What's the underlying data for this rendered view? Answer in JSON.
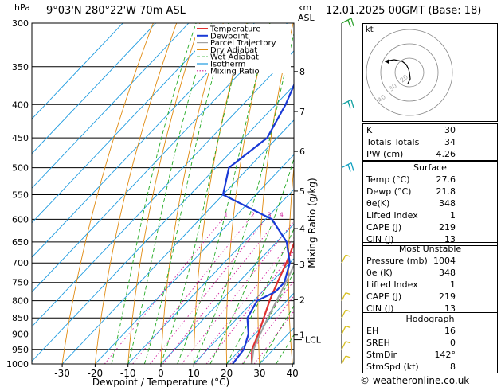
{
  "header": {
    "location": "9°03'N 280°22'W 70m ASL",
    "datetime": "12.01.2025 00GMT (Base: 18)",
    "hpa_label": "hPa",
    "km_label": "km",
    "asl_label": "ASL"
  },
  "footer": {
    "copyright": "© weatheronline.co.uk"
  },
  "chart_data": {
    "type": "line",
    "title": "9°03'N 280°22'W 70m ASL",
    "xlabel": "Dewpoint / Temperature (°C)",
    "ylabel": "Mixing Ratio (g/kg)",
    "x_ticks": [
      -30,
      -20,
      -10,
      0,
      10,
      20,
      30,
      40
    ],
    "pressure_levels": [
      300,
      350,
      400,
      450,
      500,
      550,
      600,
      650,
      700,
      750,
      800,
      850,
      900,
      950,
      1000
    ],
    "km_ticks": [
      {
        "label": "8",
        "p": 356
      },
      {
        "label": "7",
        "p": 410
      },
      {
        "label": "6",
        "p": 472
      },
      {
        "label": "5",
        "p": 543
      },
      {
        "label": "4",
        "p": 620
      },
      {
        "label": "3",
        "p": 704
      },
      {
        "label": "2",
        "p": 797
      },
      {
        "label": "1",
        "p": 903
      }
    ],
    "lcl_label": "LCL",
    "lcl_p": 918,
    "mixing_ratio_labels": [
      "1",
      "2",
      "3",
      "4",
      "6",
      "8",
      "10",
      "16",
      "20",
      "25"
    ],
    "mixing_ratio_values": [
      1,
      2,
      3,
      4,
      6,
      8,
      10,
      16,
      20,
      25
    ],
    "legend": [
      "Temperature",
      "Dewpoint",
      "Parcel Trajectory",
      "Dry Adiabat",
      "Wet Adiabat",
      "Isotherm",
      "Mixing Ratio"
    ],
    "legend_placement": "top-left",
    "grid": true,
    "series": [
      {
        "name": "Temperature",
        "color": "#e03030",
        "points": [
          [
            1000,
            27.6
          ],
          [
            950,
            23.5
          ],
          [
            900,
            21.0
          ],
          [
            850,
            18.0
          ],
          [
            800,
            14.8
          ],
          [
            750,
            11.9
          ],
          [
            700,
            9.0
          ],
          [
            650,
            5.4
          ],
          [
            600,
            1.8
          ],
          [
            550,
            -2.4
          ],
          [
            500,
            -6.6
          ],
          [
            450,
            -12.0
          ],
          [
            400,
            -18.5
          ],
          [
            375,
            -22.6
          ]
        ]
      },
      {
        "name": "Dewpoint",
        "color": "#1a3ad6",
        "points": [
          [
            1000,
            21.8
          ],
          [
            950,
            21.0
          ],
          [
            900,
            18.0
          ],
          [
            850,
            13.0
          ],
          [
            800,
            11.0
          ],
          [
            775,
            14.0
          ],
          [
            750,
            14.0
          ],
          [
            700,
            10.0
          ],
          [
            650,
            3.0
          ],
          [
            600,
            -8.0
          ],
          [
            550,
            -30.0
          ],
          [
            500,
            -36.0
          ],
          [
            450,
            -33.0
          ],
          [
            400,
            -37.0
          ],
          [
            350,
            -43.0
          ],
          [
            300,
            -52.0
          ]
        ]
      },
      {
        "name": "Parcel Trajectory",
        "color": "#a0a0a0",
        "points": [
          [
            1000,
            27.6
          ],
          [
            950,
            24.0
          ],
          [
            918,
            22.4
          ],
          [
            850,
            19.2
          ],
          [
            800,
            16.9
          ],
          [
            750,
            14.5
          ],
          [
            700,
            11.6
          ],
          [
            650,
            8.4
          ],
          [
            600,
            4.6
          ],
          [
            550,
            0.4
          ],
          [
            500,
            -4.4
          ],
          [
            450,
            -10.0
          ],
          [
            400,
            -16.6
          ],
          [
            375,
            -20.5
          ]
        ]
      }
    ],
    "isotherms": [
      -110,
      -100,
      -90,
      -80,
      -70,
      -60,
      -50,
      -40,
      -30,
      -20,
      -10,
      0,
      10,
      20,
      30,
      40
    ],
    "dry_adiabats_theta": [
      -30,
      -20,
      -10,
      0,
      10,
      20,
      30,
      40,
      50,
      60,
      70,
      80,
      90,
      100,
      110,
      120,
      130
    ],
    "wet_adiabats_start": [
      -15,
      -10,
      -5,
      0,
      5,
      10,
      15,
      20,
      25,
      30,
      35
    ],
    "wind_barbs": [
      {
        "p": 300,
        "color": "#2ca02c"
      },
      {
        "p": 400,
        "color": "#10a0a0"
      },
      {
        "p": 500,
        "color": "#10a0c0"
      },
      {
        "p": 700,
        "color": "#d8c020"
      },
      {
        "p": 800,
        "color": "#d8c020"
      },
      {
        "p": 850,
        "color": "#d8c020"
      },
      {
        "p": 900,
        "color": "#d8c020"
      },
      {
        "p": 950,
        "color": "#d8c020"
      },
      {
        "p": 1000,
        "color": "#d8c020"
      }
    ]
  },
  "hodograph": {
    "label": "kt",
    "ring_labels": [
      "20",
      "30",
      "40"
    ]
  },
  "indices": {
    "rows": [
      {
        "k": "K",
        "v": "30"
      },
      {
        "k": "Totals Totals",
        "v": "34"
      },
      {
        "k": "PW (cm)",
        "v": "4.26"
      }
    ]
  },
  "surface": {
    "title": "Surface",
    "rows": [
      {
        "k": "Temp (°C)",
        "v": "27.6"
      },
      {
        "k": "Dewp (°C)",
        "v": "21.8"
      },
      {
        "k": "θe(K)",
        "v": "348"
      },
      {
        "k": "Lifted Index",
        "v": "1"
      },
      {
        "k": "CAPE (J)",
        "v": "219"
      },
      {
        "k": "CIN (J)",
        "v": "13"
      }
    ]
  },
  "most_unstable": {
    "title": "Most Unstable",
    "rows": [
      {
        "k": "Pressure (mb)",
        "v": "1004"
      },
      {
        "k": "θe (K)",
        "v": "348"
      },
      {
        "k": "Lifted Index",
        "v": "1"
      },
      {
        "k": "CAPE (J)",
        "v": "219"
      },
      {
        "k": "CIN (J)",
        "v": "13"
      }
    ]
  },
  "hodograph_table": {
    "title": "Hodograph",
    "rows": [
      {
        "k": "EH",
        "v": "16"
      },
      {
        "k": "SREH",
        "v": "0"
      },
      {
        "k": "StmDir",
        "v": "142°"
      },
      {
        "k": "StmSpd (kt)",
        "v": "8"
      }
    ]
  }
}
